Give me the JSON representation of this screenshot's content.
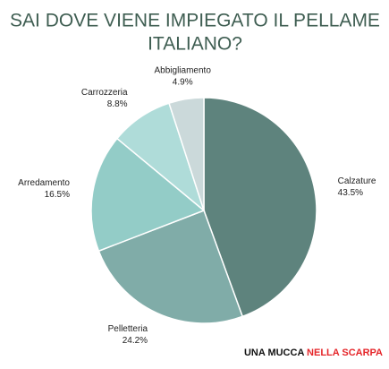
{
  "chart_data": {
    "type": "pie",
    "title": [
      "SAI DOVE VIENE IMPIEGATO IL PELLAME",
      "ITALIANO?"
    ],
    "categories": [
      "Calzature",
      "Pelletteria",
      "Arredamento",
      "Carrozzeria",
      "Abbigliamento"
    ],
    "values": [
      43.5,
      24.2,
      16.5,
      8.8,
      4.9
    ],
    "value_labels": [
      "43.5%",
      "24.2%",
      "16.5%",
      "8.8%",
      "4.9%"
    ],
    "colors": [
      "#5e837d",
      "#80aca8",
      "#93ccc7",
      "#afdcd9",
      "#cbd9da"
    ],
    "footer": [
      "UNA MUCCA",
      "NELLA SCARPA"
    ]
  }
}
